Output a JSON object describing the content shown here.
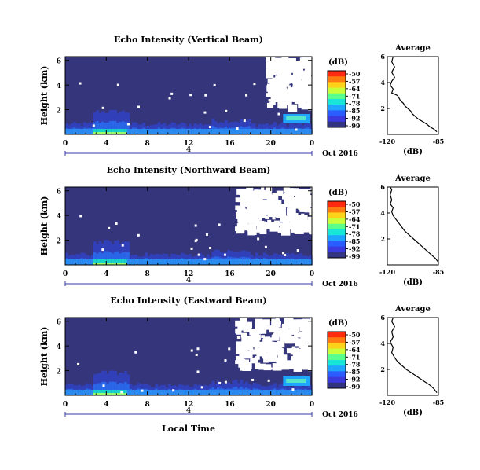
{
  "chart_data": [
    {
      "type": "heatmap",
      "title": "Echo Intensity (Vertical Beam)",
      "ylabel": "Height (km)",
      "xticks": [
        "0",
        "4",
        "8",
        "12",
        "16",
        "20",
        "0"
      ],
      "yticks": [
        "2",
        "4",
        "6"
      ],
      "date_label": "Oct 2016",
      "bracket_label": "4",
      "colorbar": {
        "unit": "(dB)",
        "ticks": [
          "-50",
          "-57",
          "-64",
          "-71",
          "-78",
          "-85",
          "-92",
          "-99"
        ]
      },
      "profile": {
        "title": "Average",
        "xlabel": "(dB)",
        "xticks": [
          "-120",
          "-85"
        ],
        "yticks": [
          "2",
          "4",
          "6"
        ],
        "xlim": [
          -120,
          -85
        ],
        "ylim": [
          0,
          6
        ],
        "points": [
          [
            -86,
            0.2
          ],
          [
            -88,
            0.4
          ],
          [
            -91,
            0.6
          ],
          [
            -93,
            0.8
          ],
          [
            -96,
            1.0
          ],
          [
            -99,
            1.2
          ],
          [
            -101,
            1.4
          ],
          [
            -103,
            1.6
          ],
          [
            -104,
            1.8
          ],
          [
            -106,
            2.0
          ],
          [
            -108,
            2.2
          ],
          [
            -109,
            2.4
          ],
          [
            -111,
            2.6
          ],
          [
            -112,
            2.8
          ],
          [
            -113,
            3.0
          ],
          [
            -117,
            3.2
          ],
          [
            -116,
            3.5
          ],
          [
            -118,
            3.8
          ],
          [
            -117,
            4.1
          ],
          [
            -115,
            4.4
          ],
          [
            -117,
            4.8
          ],
          [
            -115,
            5.2
          ],
          [
            -117,
            5.6
          ],
          [
            -116,
            6.0
          ]
        ]
      }
    },
    {
      "type": "heatmap",
      "title": "Echo Intensity (Northward Beam)",
      "ylabel": "Height (km)",
      "xticks": [
        "0",
        "4",
        "8",
        "12",
        "16",
        "20",
        "0"
      ],
      "yticks": [
        "2",
        "4",
        "6"
      ],
      "date_label": "Oct 2016",
      "bracket_label": "4",
      "colorbar": {
        "unit": "(dB)",
        "ticks": [
          "-50",
          "-57",
          "-64",
          "-71",
          "-78",
          "-85",
          "-92",
          "-99"
        ]
      },
      "profile": {
        "title": "Average",
        "xlabel": "(dB)",
        "xticks": [
          "-120",
          "-85"
        ],
        "yticks": [
          "2",
          "4",
          "6"
        ],
        "xlim": [
          -120,
          -85
        ],
        "ylim": [
          0,
          6
        ],
        "points": [
          [
            -85,
            0.2
          ],
          [
            -87,
            0.5
          ],
          [
            -90,
            0.8
          ],
          [
            -93,
            1.1
          ],
          [
            -96,
            1.4
          ],
          [
            -99,
            1.7
          ],
          [
            -102,
            2.0
          ],
          [
            -105,
            2.3
          ],
          [
            -108,
            2.6
          ],
          [
            -110,
            2.9
          ],
          [
            -112,
            3.2
          ],
          [
            -114,
            3.5
          ],
          [
            -116,
            3.8
          ],
          [
            -117,
            4.1
          ],
          [
            -116,
            4.4
          ],
          [
            -118,
            4.7
          ],
          [
            -117,
            5.0
          ],
          [
            -118,
            5.4
          ],
          [
            -117,
            5.8
          ],
          [
            -118,
            6.0
          ]
        ]
      }
    },
    {
      "type": "heatmap",
      "title": "Echo Intensity (Eastward Beam)",
      "ylabel": "Height (km)",
      "xticks": [
        "0",
        "4",
        "8",
        "12",
        "16",
        "20",
        "0"
      ],
      "yticks": [
        "2",
        "4",
        "6"
      ],
      "date_label": "Oct 2016",
      "bracket_label": "4",
      "xlabel": "Local Time",
      "colorbar": {
        "unit": "(dB)",
        "ticks": [
          "-50",
          "-57",
          "-64",
          "-71",
          "-78",
          "-85",
          "-92",
          "-99"
        ]
      },
      "profile": {
        "title": "Average",
        "xlabel": "(dB)",
        "xticks": [
          "-120",
          "-85"
        ],
        "yticks": [
          "2",
          "4",
          "6"
        ],
        "xlim": [
          -120,
          -85
        ],
        "ylim": [
          0,
          6
        ],
        "points": [
          [
            -86,
            0.2
          ],
          [
            -88,
            0.5
          ],
          [
            -91,
            0.8
          ],
          [
            -95,
            1.1
          ],
          [
            -99,
            1.4
          ],
          [
            -103,
            1.7
          ],
          [
            -107,
            2.0
          ],
          [
            -110,
            2.3
          ],
          [
            -113,
            2.6
          ],
          [
            -115,
            2.9
          ],
          [
            -117,
            3.3
          ],
          [
            -116,
            3.7
          ],
          [
            -118,
            4.1
          ],
          [
            -116,
            4.5
          ],
          [
            -117,
            4.9
          ],
          [
            -115,
            5.3
          ],
          [
            -117,
            5.7
          ],
          [
            -116,
            6.0
          ]
        ]
      }
    }
  ]
}
